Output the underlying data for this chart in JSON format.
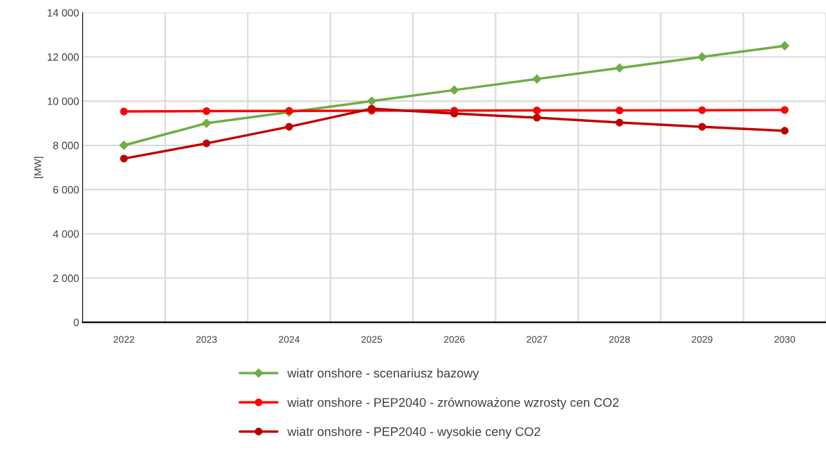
{
  "chart_data": {
    "type": "line",
    "ylabel": "[MW]",
    "categories": [
      "2022",
      "2023",
      "2024",
      "2025",
      "2026",
      "2027",
      "2028",
      "2029",
      "2030"
    ],
    "series": [
      {
        "name": "wiatr onshore - scenariusz bazowy",
        "color": "#70ad47",
        "marker": "diamond",
        "values": [
          8000,
          9000,
          9500,
          10000,
          10500,
          11000,
          11500,
          12000,
          12500
        ]
      },
      {
        "name": "wiatr onshore - PEP2040 - zrównoważone wzrosty cen CO2",
        "color": "#ff0000",
        "marker": "circle",
        "values": [
          9530,
          9550,
          9560,
          9570,
          9570,
          9580,
          9580,
          9590,
          9600
        ]
      },
      {
        "name": "wiatr onshore - PEP2040 - wysokie ceny CO2",
        "color": "#c00000",
        "marker": "circle",
        "values": [
          7400,
          8090,
          8840,
          9660,
          9440,
          9250,
          9030,
          8840,
          8660
        ]
      }
    ],
    "ylim": [
      0,
      14000
    ],
    "yticks": [
      {
        "value": 0,
        "label": "0"
      },
      {
        "value": 2000,
        "label": "2 000"
      },
      {
        "value": 4000,
        "label": "4 000"
      },
      {
        "value": 6000,
        "label": "6 000"
      },
      {
        "value": 8000,
        "label": "8 000"
      },
      {
        "value": 10000,
        "label": "10 000"
      },
      {
        "value": 12000,
        "label": "12 000"
      },
      {
        "value": 14000,
        "label": "14 000"
      }
    ],
    "grid": true,
    "legend": "bottom",
    "line_style": "solid"
  }
}
